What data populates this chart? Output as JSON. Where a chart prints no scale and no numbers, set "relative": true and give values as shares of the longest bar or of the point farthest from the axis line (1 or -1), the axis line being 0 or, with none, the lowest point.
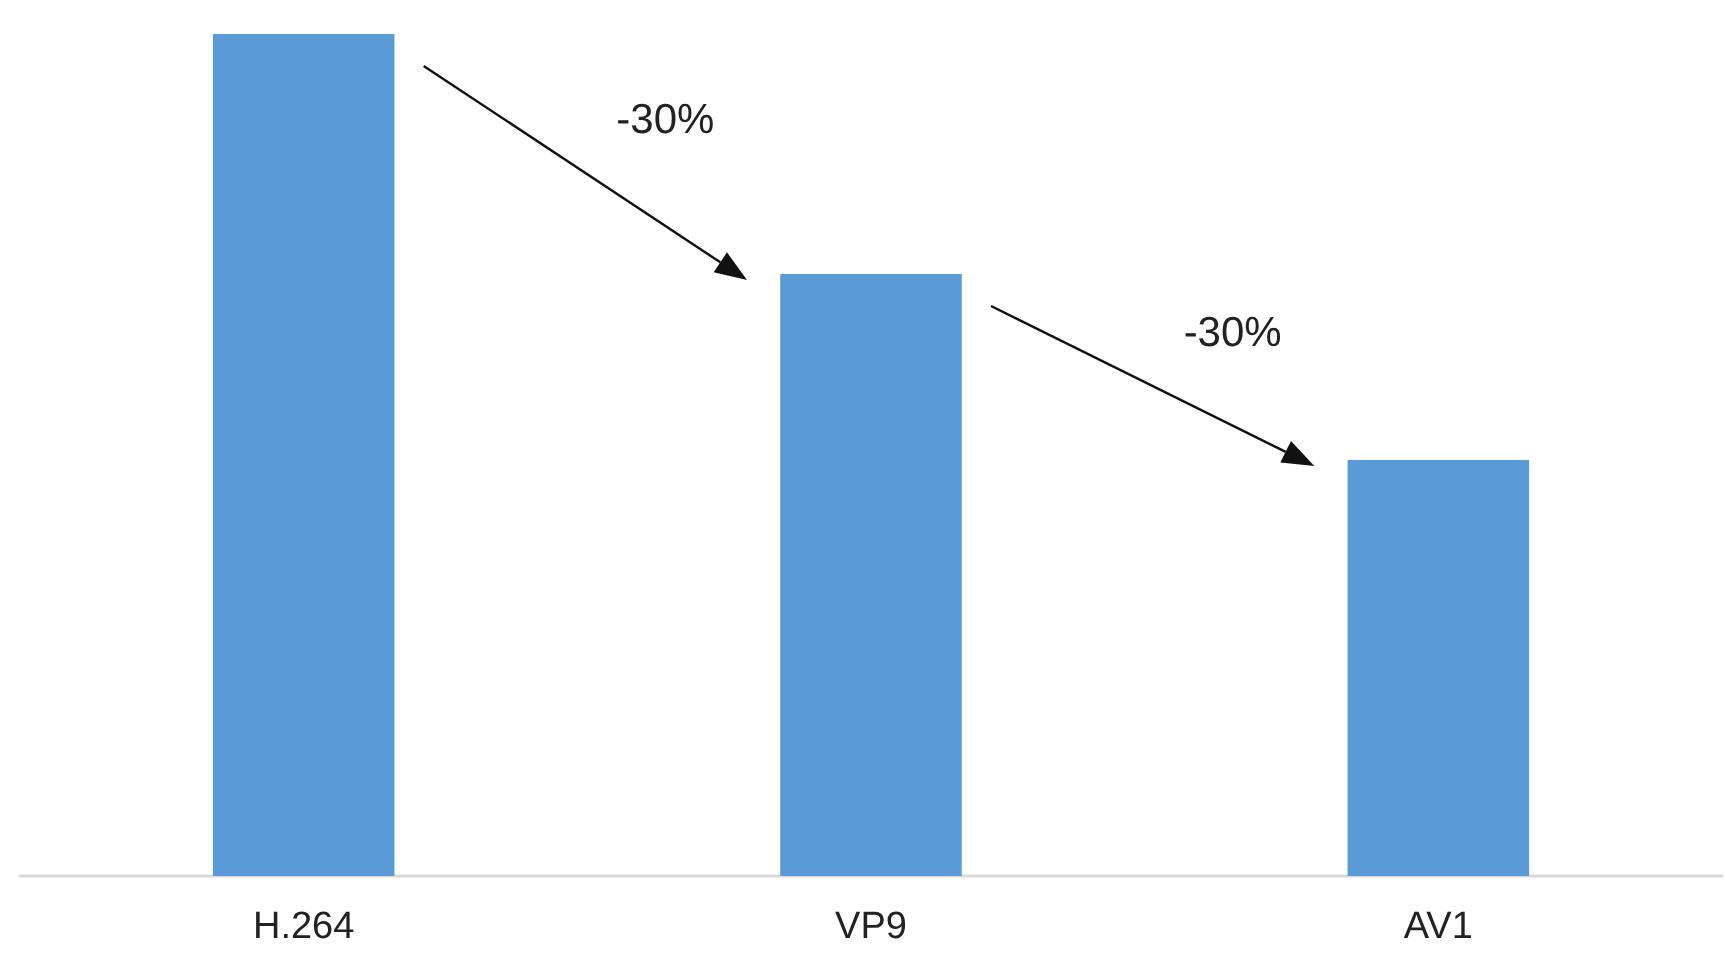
{
  "chart_data": {
    "type": "bar",
    "relative": true,
    "categories": [
      "H.264",
      "VP9",
      "AV1"
    ],
    "values": [
      1,
      0.715,
      0.494
    ],
    "color": "#5b9bd5",
    "annotations": [
      "-30%",
      "-30%"
    ]
  }
}
